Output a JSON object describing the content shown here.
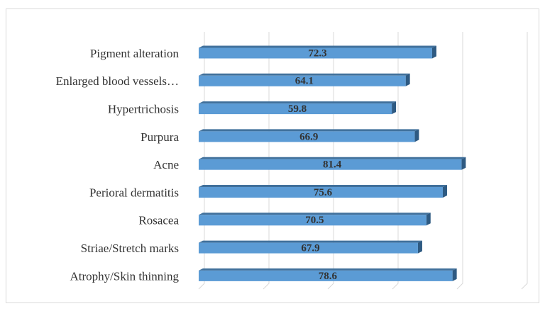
{
  "chart_data": {
    "type": "bar",
    "orientation": "horizontal",
    "categories": [
      "Pigment alteration",
      "Enlarged blood vessels…",
      "Hypertrichosis",
      "Purpura",
      "Acne",
      "Perioral dermatitis",
      "Rosacea",
      "Striae/Stretch marks",
      "Atrophy/Skin thinning"
    ],
    "values": [
      72.3,
      64.1,
      59.8,
      66.9,
      81.4,
      75.6,
      70.5,
      67.9,
      78.6
    ],
    "color": "#5b9bd5",
    "xlim": [
      0,
      100
    ],
    "xticks": [
      0,
      20,
      40,
      60,
      80,
      100
    ],
    "grid": true
  }
}
